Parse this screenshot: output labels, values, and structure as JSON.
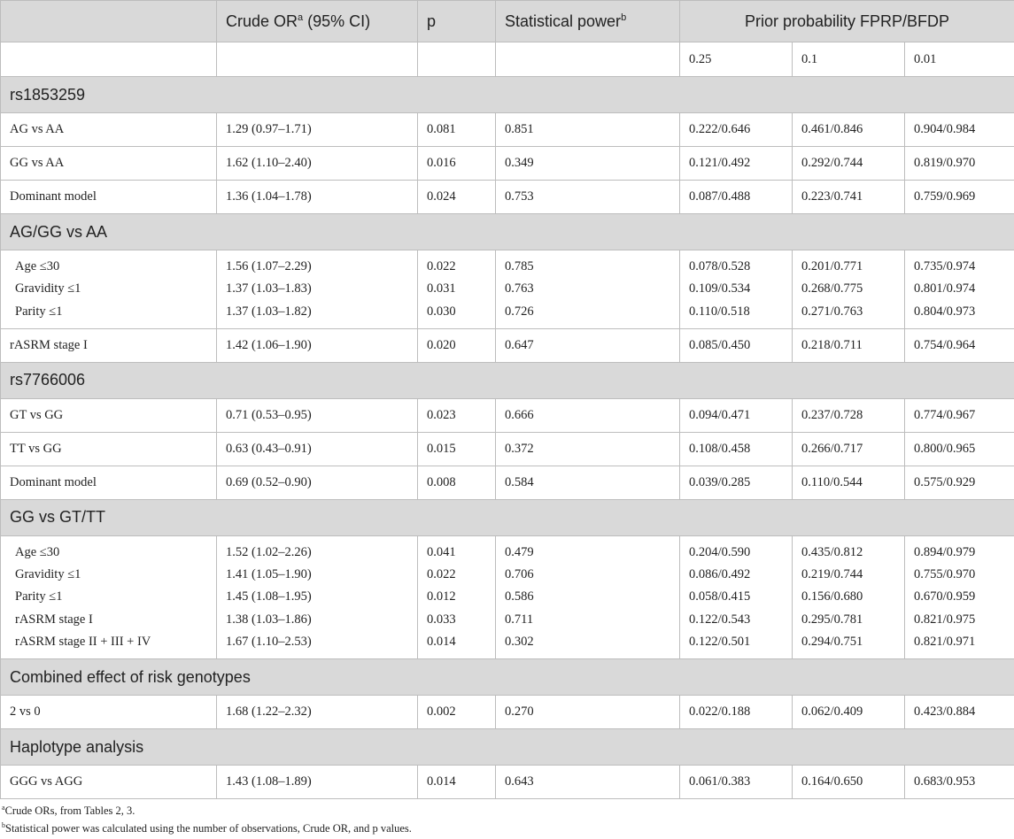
{
  "header": {
    "col1": "",
    "col2": "Crude OR",
    "col2_sup": "a",
    "col2_rest": " (95% CI)",
    "col3": "p",
    "col4": "Statistical power",
    "col4_sup": "b",
    "col5": "Prior probability FPRP/BFDP"
  },
  "subheader": {
    "p1": "0.25",
    "p2": "0.1",
    "p3": "0.01"
  },
  "sections": {
    "rs1853259": "rs1853259",
    "aggg": "AG/GG vs AA",
    "rs7766006": "rs7766006",
    "gggt": "GG vs GT/TT",
    "combined": "Combined effect of risk genotypes",
    "haplotype": "Haplotype analysis"
  },
  "rows": {
    "r1": [
      "AG vs AA",
      "1.29 (0.97–1.71)",
      "0.081",
      "0.851",
      "0.222/0.646",
      "0.461/0.846",
      "0.904/0.984"
    ],
    "r2": [
      "GG vs AA",
      "1.62 (1.10–2.40)",
      "0.016",
      "0.349",
      "0.121/0.492",
      "0.292/0.744",
      "0.819/0.970"
    ],
    "r3": [
      "Dominant model",
      "1.36 (1.04–1.78)",
      "0.024",
      "0.753",
      "0.087/0.488",
      "0.223/0.741",
      "0.759/0.969"
    ],
    "r4": [
      "Age ≤30",
      "1.56 (1.07–2.29)",
      "0.022",
      "0.785",
      "0.078/0.528",
      "0.201/0.771",
      "0.735/0.974"
    ],
    "r5": [
      "Gravidity ≤1",
      "1.37 (1.03–1.83)",
      "0.031",
      "0.763",
      "0.109/0.534",
      "0.268/0.775",
      "0.801/0.974"
    ],
    "r6": [
      "Parity ≤1",
      "1.37 (1.03–1.82)",
      "0.030",
      "0.726",
      "0.110/0.518",
      "0.271/0.763",
      "0.804/0.973"
    ],
    "r7": [
      "rASRM stage I",
      "1.42 (1.06–1.90)",
      "0.020",
      "0.647",
      "0.085/0.450",
      "0.218/0.711",
      "0.754/0.964"
    ],
    "r8": [
      "GT vs GG",
      "0.71 (0.53–0.95)",
      "0.023",
      "0.666",
      "0.094/0.471",
      "0.237/0.728",
      "0.774/0.967"
    ],
    "r9": [
      "TT vs GG",
      "0.63 (0.43–0.91)",
      "0.015",
      "0.372",
      "0.108/0.458",
      "0.266/0.717",
      "0.800/0.965"
    ],
    "r10": [
      "Dominant model",
      "0.69 (0.52–0.90)",
      "0.008",
      "0.584",
      "0.039/0.285",
      "0.110/0.544",
      "0.575/0.929"
    ],
    "r11": [
      "Age ≤30",
      "1.52 (1.02–2.26)",
      "0.041",
      "0.479",
      "0.204/0.590",
      "0.435/0.812",
      "0.894/0.979"
    ],
    "r12": [
      "Gravidity ≤1",
      "1.41 (1.05–1.90)",
      "0.022",
      "0.706",
      "0.086/0.492",
      "0.219/0.744",
      "0.755/0.970"
    ],
    "r13": [
      "Parity ≤1",
      "1.45 (1.08–1.95)",
      "0.012",
      "0.586",
      "0.058/0.415",
      "0.156/0.680",
      "0.670/0.959"
    ],
    "r14": [
      "rASRM stage I",
      "1.38 (1.03–1.86)",
      "0.033",
      "0.711",
      "0.122/0.543",
      "0.295/0.781",
      "0.821/0.975"
    ],
    "r15": [
      "rASRM stage II + III + IV",
      "1.67 (1.10–2.53)",
      "0.014",
      "0.302",
      "0.122/0.501",
      "0.294/0.751",
      "0.821/0.971"
    ],
    "r16": [
      "2 vs 0",
      "1.68 (1.22–2.32)",
      "0.002",
      "0.270",
      "0.022/0.188",
      "0.062/0.409",
      "0.423/0.884"
    ],
    "r17": [
      "GGG vs AGG",
      "1.43 (1.08–1.89)",
      "0.014",
      "0.643",
      "0.061/0.383",
      "0.164/0.650",
      "0.683/0.953"
    ]
  },
  "footnotes": {
    "a_mark": "a",
    "a_text": "Crude ORs, from Tables 2, 3.",
    "b_mark": "b",
    "b_text": "Statistical power was calculated using the number of observations, Crude OR, and p values."
  }
}
